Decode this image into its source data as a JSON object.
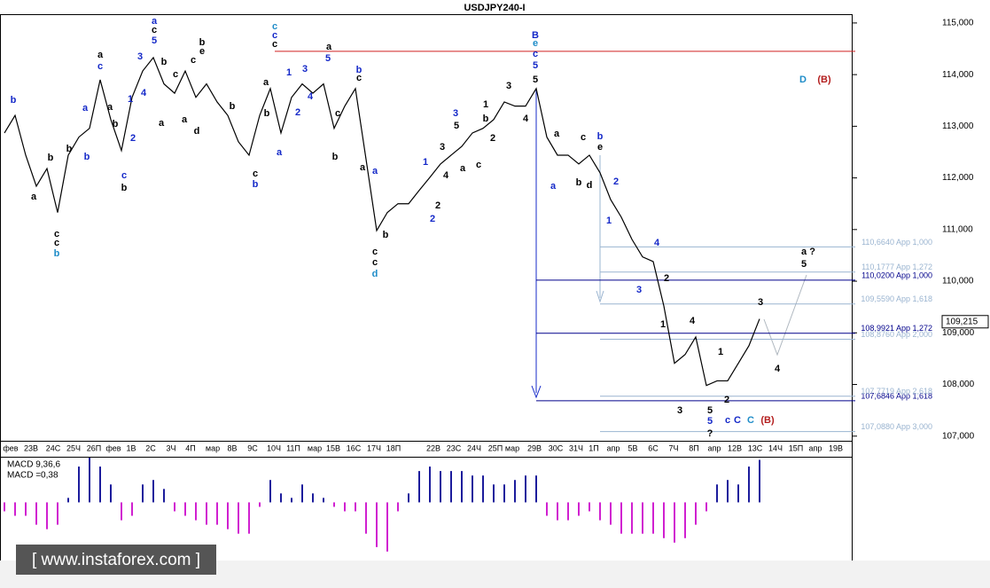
{
  "chart_data": [
    {
      "type": "line",
      "title": "USDJPY240-I",
      "color": "#000000",
      "values": [
        112.87,
        113.21,
        112.44,
        111.84,
        112.18,
        111.33,
        112.44,
        112.79,
        112.96,
        113.9,
        113.13,
        112.53,
        113.56,
        114.07,
        114.33,
        113.82,
        113.64,
        114.07,
        113.56,
        113.82,
        113.47,
        113.21,
        112.7,
        112.44,
        113.21,
        113.73,
        112.87,
        113.56,
        113.82,
        113.64,
        113.82,
        112.96,
        113.39,
        113.73,
        112.36,
        110.98,
        111.33,
        111.5,
        111.5,
        111.76,
        112.01,
        112.27,
        112.44,
        112.61,
        112.87,
        112.96,
        113.13,
        113.47,
        113.39,
        113.39,
        113.73,
        112.79,
        112.44,
        112.44,
        112.27,
        112.44,
        112.1,
        111.58,
        111.24,
        110.81,
        110.47,
        110.38,
        109.52,
        108.41,
        108.58,
        108.92,
        107.98,
        108.07,
        108.07,
        108.41,
        108.75,
        109.27
      ],
      "ylim": [
        106.91,
        115.17
      ],
      "yticks": [
        {
          "value": 107,
          "label": "107,000"
        },
        {
          "value": 108,
          "label": "108,000"
        },
        {
          "value": 109,
          "label": "109,000"
        },
        {
          "value": 110,
          "label": "110,000"
        },
        {
          "value": 111,
          "label": "111,000"
        },
        {
          "value": 112,
          "label": "112,000"
        },
        {
          "value": 113,
          "label": "113,000"
        },
        {
          "value": 114,
          "label": "114,000"
        },
        {
          "value": 115,
          "label": "115,000"
        }
      ],
      "x_labels": [
        "фев",
        "23В",
        "24С",
        "25Ч",
        "26П",
        "фев",
        "1В",
        "2С",
        "3Ч",
        "4П",
        "мар",
        "8В",
        "9С",
        "10Ч",
        "11П",
        "мар",
        "15В",
        "16С",
        "17Ч",
        "18П",
        "22В",
        "23С",
        "24Ч",
        "25П",
        "мар",
        "29В",
        "30С",
        "31Ч",
        "1П",
        "апр",
        "5В",
        "6С",
        "7Ч",
        "8П",
        "апр",
        "12В",
        "13С",
        "14Ч",
        "15П",
        "апр",
        "19В"
      ],
      "current_price": {
        "value": 109.215,
        "label": "109,215"
      },
      "levels": [
        {
          "value": 114.45,
          "color": "#d02020"
        },
        {
          "value": 110.02,
          "label": "110,0200 App 1,000",
          "color": "#00008b"
        },
        {
          "value": 108.9921,
          "label": "108,9921 App 1,272",
          "color": "#00008b"
        },
        {
          "value": 107.6846,
          "label": "107,6846 App 1,618",
          "color": "#00008b"
        },
        {
          "value": 110.664,
          "label": "110,6640 App 1,000",
          "color": "#9ab4d0"
        },
        {
          "value": 110.1777,
          "label": "110,1777 App 1,272",
          "color": "#9ab4d0"
        },
        {
          "value": 109.559,
          "label": "109,5590 App 1,618",
          "color": "#9ab4d0"
        },
        {
          "value": 108.876,
          "label": "108,8760 App 2,000",
          "color": "#9ab4d0"
        },
        {
          "value": 107.7719,
          "label": "107,7719 App 2,618",
          "color": "#9ab4d0"
        },
        {
          "value": 107.088,
          "label": "107,0880 App 3,000",
          "color": "#9ab4d0"
        }
      ],
      "annotations": [
        "b",
        "b",
        "a",
        "b",
        "c",
        "c",
        "b",
        "a",
        "c",
        "a",
        "b",
        "a",
        "b",
        "2",
        "1",
        "3",
        "4",
        "c",
        "b",
        "a",
        "c",
        "5",
        "b",
        "c",
        "a",
        "a",
        "d",
        "b",
        "e",
        "c",
        "b",
        "c",
        "b",
        "c",
        "c",
        "c",
        "a",
        "b",
        "a",
        "1",
        "2",
        "3",
        "4",
        "a",
        "5",
        "c",
        "b",
        "b",
        "c",
        "a",
        "a",
        "b",
        "c",
        "c",
        "d",
        "1",
        "2",
        "2",
        "3",
        "4",
        "3",
        "5",
        "a",
        "b",
        "c",
        "1",
        "2",
        "3",
        "4",
        "B",
        "e",
        "c",
        "5",
        "5",
        "a",
        "c",
        "b",
        "a",
        "e",
        "b",
        "d",
        "2",
        "1",
        "3",
        "4",
        "2",
        "1",
        "4",
        "3",
        "1",
        "5",
        "5",
        "?",
        "2",
        "c",
        "C",
        "C",
        "(B)",
        "3",
        "4",
        "5",
        "a ?",
        "D",
        "(B)"
      ],
      "watermark": "[ www.instaforex.com ]"
    },
    {
      "type": "bar",
      "legend": [
        "MACD 9,36,6",
        "MACD =0,38"
      ],
      "pos_color": "#1c1c9c",
      "neg_color": "#d020d0",
      "ylim": [
        -0.52,
        0.4
      ],
      "values": [
        -0.08,
        -0.12,
        -0.12,
        -0.2,
        -0.24,
        -0.2,
        0.04,
        0.32,
        0.4,
        0.32,
        0.16,
        -0.16,
        -0.12,
        0.16,
        0.2,
        0.12,
        -0.08,
        -0.12,
        -0.16,
        -0.2,
        -0.2,
        -0.24,
        -0.28,
        -0.28,
        -0.04,
        0.2,
        0.08,
        0.04,
        0.16,
        0.08,
        0.04,
        -0.04,
        -0.08,
        -0.08,
        -0.28,
        -0.4,
        -0.44,
        -0.08,
        0.08,
        0.28,
        0.32,
        0.28,
        0.28,
        0.28,
        0.24,
        0.24,
        0.16,
        0.16,
        0.2,
        0.24,
        0.24,
        -0.12,
        -0.16,
        -0.16,
        -0.12,
        -0.08,
        -0.16,
        -0.2,
        -0.28,
        -0.28,
        -0.28,
        -0.28,
        -0.32,
        -0.36,
        -0.32,
        -0.2,
        -0.08,
        0.16,
        0.2,
        0.16,
        0.32,
        0.38
      ]
    }
  ]
}
